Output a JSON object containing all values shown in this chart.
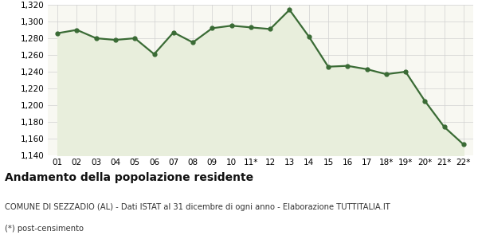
{
  "x_labels": [
    "01",
    "02",
    "03",
    "04",
    "05",
    "06",
    "07",
    "08",
    "09",
    "10",
    "11*",
    "12",
    "13",
    "14",
    "15",
    "16",
    "17",
    "18*",
    "19*",
    "20*",
    "21*",
    "22*"
  ],
  "y_values": [
    1286,
    1290,
    1280,
    1278,
    1280,
    1261,
    1287,
    1275,
    1292,
    1295,
    1293,
    1291,
    1314,
    1282,
    1246,
    1247,
    1243,
    1237,
    1240,
    1205,
    1174,
    1153
  ],
  "line_color": "#3a6b35",
  "fill_color": "#e8eedc",
  "marker": "o",
  "marker_size": 3.5,
  "line_width": 1.6,
  "ylim_min": 1140,
  "ylim_max": 1320,
  "ytick_step": 20,
  "grid_color": "#d0d0d0",
  "plot_bg_color": "#f8f8f2",
  "fig_bg_color": "#ffffff",
  "title": "Andamento della popolazione residente",
  "subtitle": "COMUNE DI SEZZADIO (AL) - Dati ISTAT al 31 dicembre di ogni anno - Elaborazione TUTTITALIA.IT",
  "footnote": "(*) post-censimento",
  "title_fontsize": 10,
  "subtitle_fontsize": 7.2,
  "footnote_fontsize": 7.2,
  "tick_fontsize": 7.5
}
